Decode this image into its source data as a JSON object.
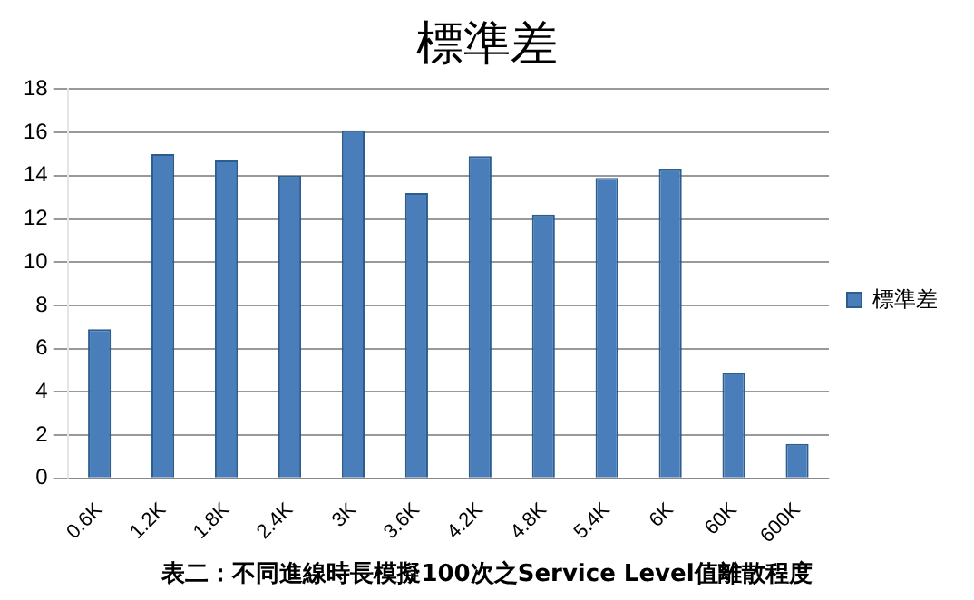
{
  "chart_data": {
    "type": "bar",
    "title": "標準差",
    "categories": [
      "0.6K",
      "1.2K",
      "1.8K",
      "2.4K",
      "3K",
      "3.6K",
      "4.2K",
      "4.8K",
      "5.4K",
      "6K",
      "60K",
      "600K"
    ],
    "series": [
      {
        "name": "標準差",
        "color": "#4a7ebb",
        "values": [
          6.9,
          15.0,
          14.7,
          14.0,
          16.1,
          13.2,
          14.9,
          12.2,
          13.9,
          14.3,
          4.9,
          1.6
        ]
      }
    ],
    "ylim": [
      0,
      18
    ],
    "yticks": [
      0,
      2,
      4,
      6,
      8,
      10,
      12,
      14,
      16,
      18
    ],
    "grid": "y",
    "legend": "right",
    "annotations": [
      "表二：不同進線時長模擬100次之Service Level值離散程度"
    ]
  }
}
